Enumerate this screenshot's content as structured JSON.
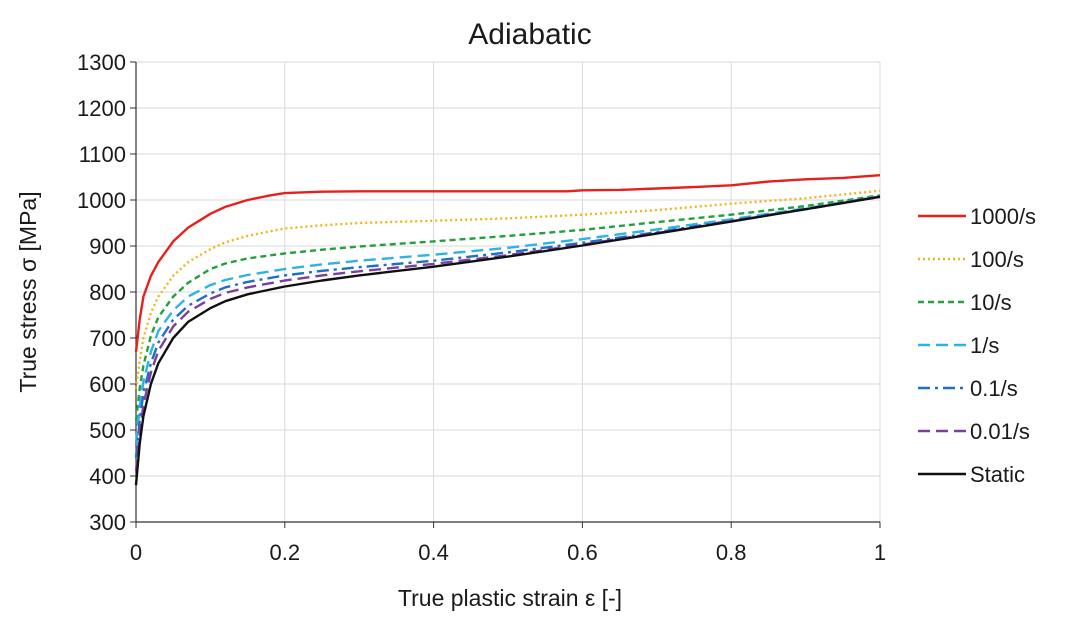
{
  "chart_data": {
    "type": "line",
    "title": "Adiabatic",
    "xlabel": "True plastic strain ε [-]",
    "ylabel": "True stress σ [MPa]",
    "xlim": [
      0,
      1
    ],
    "ylim": [
      300,
      1300
    ],
    "xticks": [
      0,
      0.2,
      0.4,
      0.6,
      0.8,
      1
    ],
    "xtick_labels": [
      "0",
      "0.2",
      "0.4",
      "0.6",
      "0.8",
      "1"
    ],
    "yticks": [
      300,
      400,
      500,
      600,
      700,
      800,
      900,
      1000,
      1100,
      1200,
      1300
    ],
    "ytick_labels": [
      "300",
      "400",
      "500",
      "600",
      "700",
      "800",
      "900",
      "1000",
      "1100",
      "1200",
      "1300"
    ],
    "grid": true,
    "legend_position": "right",
    "series": [
      {
        "name": "1000/s",
        "color": "#e8201c",
        "dash": "solid",
        "x": [
          0,
          0.005,
          0.01,
          0.02,
          0.03,
          0.05,
          0.07,
          0.1,
          0.12,
          0.15,
          0.18,
          0.2,
          0.25,
          0.3,
          0.4,
          0.5,
          0.58,
          0.6,
          0.65,
          0.7,
          0.75,
          0.8,
          0.85,
          0.9,
          0.95,
          1.0
        ],
        "y": [
          670,
          740,
          790,
          835,
          865,
          910,
          940,
          970,
          985,
          1000,
          1010,
          1015,
          1018,
          1019,
          1019,
          1019,
          1019,
          1021,
          1022,
          1025,
          1028,
          1032,
          1040,
          1045,
          1048,
          1054
        ]
      },
      {
        "name": "100/s",
        "color": "#f2b416",
        "dash": "dotted",
        "x": [
          0,
          0.005,
          0.01,
          0.02,
          0.03,
          0.05,
          0.07,
          0.1,
          0.12,
          0.15,
          0.18,
          0.2,
          0.25,
          0.3,
          0.4,
          0.5,
          0.6,
          0.7,
          0.8,
          0.9,
          1.0
        ],
        "y": [
          590,
          650,
          700,
          755,
          790,
          835,
          865,
          893,
          908,
          922,
          932,
          938,
          945,
          950,
          955,
          960,
          968,
          978,
          992,
          1004,
          1020
        ]
      },
      {
        "name": "10/s",
        "color": "#22a03a",
        "dash": "dashed",
        "x": [
          0,
          0.005,
          0.01,
          0.02,
          0.03,
          0.05,
          0.07,
          0.1,
          0.12,
          0.15,
          0.2,
          0.25,
          0.3,
          0.4,
          0.5,
          0.6,
          0.7,
          0.8,
          0.9,
          1.0
        ],
        "y": [
          520,
          590,
          640,
          705,
          745,
          790,
          820,
          850,
          862,
          873,
          884,
          892,
          899,
          910,
          922,
          935,
          952,
          968,
          987,
          1010
        ]
      },
      {
        "name": "1/s",
        "color": "#2fb2e6",
        "dash": "longdash",
        "x": [
          0,
          0.005,
          0.01,
          0.02,
          0.03,
          0.05,
          0.07,
          0.1,
          0.12,
          0.15,
          0.2,
          0.25,
          0.3,
          0.4,
          0.5,
          0.6,
          0.7,
          0.8,
          0.9,
          1.0
        ],
        "y": [
          470,
          550,
          605,
          670,
          715,
          760,
          790,
          815,
          826,
          837,
          850,
          860,
          868,
          881,
          896,
          915,
          936,
          958,
          982,
          1008
        ]
      },
      {
        "name": "0.1/s",
        "color": "#1f6fc6",
        "dash": "dashdot",
        "x": [
          0,
          0.005,
          0.01,
          0.02,
          0.03,
          0.05,
          0.07,
          0.1,
          0.12,
          0.15,
          0.2,
          0.25,
          0.3,
          0.4,
          0.5,
          0.6,
          0.7,
          0.8,
          0.9,
          1.0
        ],
        "y": [
          440,
          520,
          580,
          645,
          690,
          740,
          770,
          797,
          810,
          822,
          836,
          846,
          854,
          868,
          886,
          907,
          930,
          955,
          980,
          1007
        ]
      },
      {
        "name": "0.01/s",
        "color": "#7b3fa0",
        "dash": "longdash",
        "x": [
          0,
          0.005,
          0.01,
          0.02,
          0.03,
          0.05,
          0.07,
          0.1,
          0.12,
          0.15,
          0.2,
          0.25,
          0.3,
          0.4,
          0.5,
          0.6,
          0.7,
          0.8,
          0.9,
          1.0
        ],
        "y": [
          410,
          495,
          555,
          625,
          672,
          725,
          757,
          785,
          798,
          810,
          825,
          836,
          845,
          861,
          880,
          903,
          928,
          954,
          980,
          1007
        ]
      },
      {
        "name": "Static",
        "color": "#111111",
        "dash": "solid",
        "x": [
          0,
          0.005,
          0.01,
          0.02,
          0.03,
          0.05,
          0.07,
          0.1,
          0.12,
          0.15,
          0.2,
          0.25,
          0.3,
          0.4,
          0.5,
          0.6,
          0.7,
          0.8,
          0.9,
          1.0
        ],
        "y": [
          380,
          470,
          530,
          600,
          645,
          700,
          735,
          765,
          780,
          795,
          812,
          825,
          836,
          855,
          877,
          901,
          927,
          953,
          980,
          1007
        ]
      }
    ]
  }
}
